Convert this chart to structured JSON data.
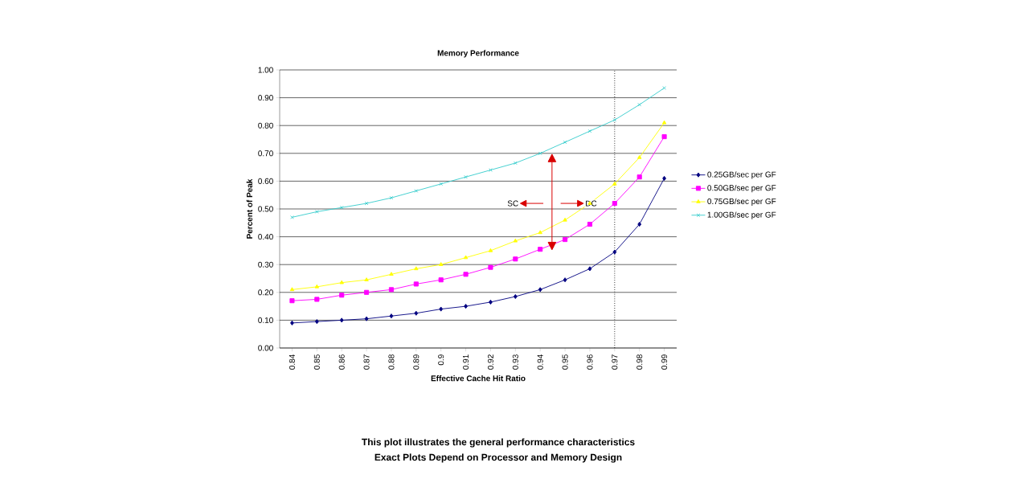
{
  "chart_data": {
    "type": "line",
    "title": "Memory Performance",
    "xlabel": "Effective Cache Hit Ratio",
    "ylabel": "Percent of Peak",
    "categories": [
      "0.84",
      "0.85",
      "0.86",
      "0.87",
      "0.88",
      "0.89",
      "0.9",
      "0.91",
      "0.92",
      "0.93",
      "0.94",
      "0.95",
      "0.96",
      "0.97",
      "0.98",
      "0.99"
    ],
    "series": [
      {
        "name": "0.25GB/sec per GF",
        "color": "#000080",
        "marker": "diamond",
        "values": [
          0.09,
          0.095,
          0.1,
          0.105,
          0.115,
          0.125,
          0.14,
          0.15,
          0.165,
          0.185,
          0.21,
          0.245,
          0.285,
          0.345,
          0.445,
          0.61
        ]
      },
      {
        "name": "0.50GB/sec per GF",
        "color": "#ff00ff",
        "marker": "square",
        "values": [
          0.17,
          0.175,
          0.19,
          0.2,
          0.21,
          0.23,
          0.245,
          0.265,
          0.29,
          0.32,
          0.355,
          0.39,
          0.445,
          0.52,
          0.615,
          0.76
        ]
      },
      {
        "name": "0.75GB/sec per GF",
        "color": "#ffff00",
        "marker": "triangle",
        "values": [
          0.21,
          0.22,
          0.235,
          0.245,
          0.265,
          0.285,
          0.3,
          0.325,
          0.35,
          0.385,
          0.415,
          0.46,
          0.52,
          0.59,
          0.685,
          0.81
        ]
      },
      {
        "name": "1.00GB/sec per GF",
        "color": "#33cccc",
        "marker": "cross",
        "values": [
          0.47,
          0.49,
          0.505,
          0.52,
          0.54,
          0.565,
          0.59,
          0.615,
          0.64,
          0.665,
          0.7,
          0.74,
          0.78,
          0.82,
          0.875,
          0.935
        ]
      }
    ],
    "ylim": [
      0,
      1
    ],
    "yticks": [
      {
        "value": 0,
        "label": "0.00"
      },
      {
        "value": 0.1,
        "label": "0.10"
      },
      {
        "value": 0.2,
        "label": "0.20"
      },
      {
        "value": 0.3,
        "label": "0.30"
      },
      {
        "value": 0.4,
        "label": "0.40"
      },
      {
        "value": 0.5,
        "label": "0.50"
      },
      {
        "value": 0.6,
        "label": "0.60"
      },
      {
        "value": 0.7,
        "label": "0.70"
      },
      {
        "value": 0.8,
        "label": "0.80"
      },
      {
        "value": 0.9,
        "label": "0.90"
      },
      {
        "value": 1,
        "label": "1.00"
      }
    ],
    "grid": "y",
    "legend": "right",
    "line_style": "solid",
    "ref_lines": [
      {
        "axis": "x",
        "value": "0.97",
        "line_style": "dotted"
      }
    ],
    "annotations": [
      "SC",
      "DC",
      "This plot illustrates the general performance characteristics",
      "Exact Plots Depend on Processor and Memory Design"
    ]
  }
}
